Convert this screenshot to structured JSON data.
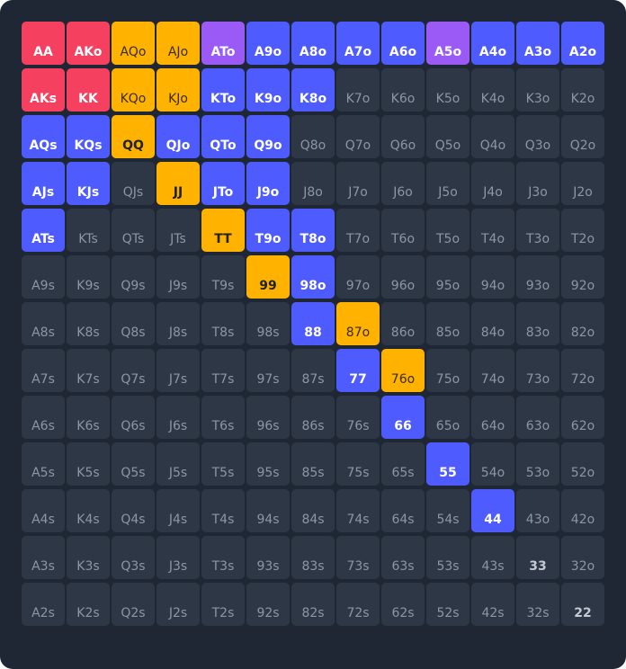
{
  "ranks": [
    "A",
    "K",
    "Q",
    "J",
    "T",
    "9",
    "8",
    "7",
    "6",
    "5",
    "4",
    "3",
    "2"
  ],
  "colors": {
    "premium": "#f5405f",
    "raise": "#4d5bff",
    "call": "#ffb300",
    "mixed": "#9b59f6",
    "fold": "#2d3745",
    "background": "#1e2733"
  },
  "hands": [
    {
      "label": "AA",
      "action": "premium"
    },
    {
      "label": "AKo",
      "action": "premium"
    },
    {
      "label": "AQo",
      "action": "call"
    },
    {
      "label": "AJo",
      "action": "call"
    },
    {
      "label": "ATo",
      "action": "mixed"
    },
    {
      "label": "A9o",
      "action": "raise"
    },
    {
      "label": "A8o",
      "action": "raise"
    },
    {
      "label": "A7o",
      "action": "raise"
    },
    {
      "label": "A6o",
      "action": "raise"
    },
    {
      "label": "A5o",
      "action": "mixed"
    },
    {
      "label": "A4o",
      "action": "raise"
    },
    {
      "label": "A3o",
      "action": "raise"
    },
    {
      "label": "A2o",
      "action": "raise"
    },
    {
      "label": "AKs",
      "action": "premium"
    },
    {
      "label": "KK",
      "action": "premium"
    },
    {
      "label": "KQo",
      "action": "call"
    },
    {
      "label": "KJo",
      "action": "call"
    },
    {
      "label": "KTo",
      "action": "raise"
    },
    {
      "label": "K9o",
      "action": "raise"
    },
    {
      "label": "K8o",
      "action": "raise"
    },
    {
      "label": "K7o",
      "action": "fold"
    },
    {
      "label": "K6o",
      "action": "fold"
    },
    {
      "label": "K5o",
      "action": "fold"
    },
    {
      "label": "K4o",
      "action": "fold"
    },
    {
      "label": "K3o",
      "action": "fold"
    },
    {
      "label": "K2o",
      "action": "fold"
    },
    {
      "label": "AQs",
      "action": "raise"
    },
    {
      "label": "KQs",
      "action": "raise"
    },
    {
      "label": "QQ",
      "action": "call"
    },
    {
      "label": "QJo",
      "action": "raise"
    },
    {
      "label": "QTo",
      "action": "raise"
    },
    {
      "label": "Q9o",
      "action": "raise"
    },
    {
      "label": "Q8o",
      "action": "fold"
    },
    {
      "label": "Q7o",
      "action": "fold"
    },
    {
      "label": "Q6o",
      "action": "fold"
    },
    {
      "label": "Q5o",
      "action": "fold"
    },
    {
      "label": "Q4o",
      "action": "fold"
    },
    {
      "label": "Q3o",
      "action": "fold"
    },
    {
      "label": "Q2o",
      "action": "fold"
    },
    {
      "label": "AJs",
      "action": "raise"
    },
    {
      "label": "KJs",
      "action": "raise"
    },
    {
      "label": "QJs",
      "action": "fold"
    },
    {
      "label": "JJ",
      "action": "call"
    },
    {
      "label": "JTo",
      "action": "raise"
    },
    {
      "label": "J9o",
      "action": "raise"
    },
    {
      "label": "J8o",
      "action": "fold"
    },
    {
      "label": "J7o",
      "action": "fold"
    },
    {
      "label": "J6o",
      "action": "fold"
    },
    {
      "label": "J5o",
      "action": "fold"
    },
    {
      "label": "J4o",
      "action": "fold"
    },
    {
      "label": "J3o",
      "action": "fold"
    },
    {
      "label": "J2o",
      "action": "fold"
    },
    {
      "label": "ATs",
      "action": "raise"
    },
    {
      "label": "KTs",
      "action": "fold"
    },
    {
      "label": "QTs",
      "action": "fold"
    },
    {
      "label": "JTs",
      "action": "fold"
    },
    {
      "label": "TT",
      "action": "call"
    },
    {
      "label": "T9o",
      "action": "raise"
    },
    {
      "label": "T8o",
      "action": "raise"
    },
    {
      "label": "T7o",
      "action": "fold"
    },
    {
      "label": "T6o",
      "action": "fold"
    },
    {
      "label": "T5o",
      "action": "fold"
    },
    {
      "label": "T4o",
      "action": "fold"
    },
    {
      "label": "T3o",
      "action": "fold"
    },
    {
      "label": "T2o",
      "action": "fold"
    },
    {
      "label": "A9s",
      "action": "fold"
    },
    {
      "label": "K9s",
      "action": "fold"
    },
    {
      "label": "Q9s",
      "action": "fold"
    },
    {
      "label": "J9s",
      "action": "fold"
    },
    {
      "label": "T9s",
      "action": "fold"
    },
    {
      "label": "99",
      "action": "call"
    },
    {
      "label": "98o",
      "action": "raise"
    },
    {
      "label": "97o",
      "action": "fold"
    },
    {
      "label": "96o",
      "action": "fold"
    },
    {
      "label": "95o",
      "action": "fold"
    },
    {
      "label": "94o",
      "action": "fold"
    },
    {
      "label": "93o",
      "action": "fold"
    },
    {
      "label": "92o",
      "action": "fold"
    },
    {
      "label": "A8s",
      "action": "fold"
    },
    {
      "label": "K8s",
      "action": "fold"
    },
    {
      "label": "Q8s",
      "action": "fold"
    },
    {
      "label": "J8s",
      "action": "fold"
    },
    {
      "label": "T8s",
      "action": "fold"
    },
    {
      "label": "98s",
      "action": "fold"
    },
    {
      "label": "88",
      "action": "raise"
    },
    {
      "label": "87o",
      "action": "call"
    },
    {
      "label": "86o",
      "action": "fold"
    },
    {
      "label": "85o",
      "action": "fold"
    },
    {
      "label": "84o",
      "action": "fold"
    },
    {
      "label": "83o",
      "action": "fold"
    },
    {
      "label": "82o",
      "action": "fold"
    },
    {
      "label": "A7s",
      "action": "fold"
    },
    {
      "label": "K7s",
      "action": "fold"
    },
    {
      "label": "Q7s",
      "action": "fold"
    },
    {
      "label": "J7s",
      "action": "fold"
    },
    {
      "label": "T7s",
      "action": "fold"
    },
    {
      "label": "97s",
      "action": "fold"
    },
    {
      "label": "87s",
      "action": "fold"
    },
    {
      "label": "77",
      "action": "raise"
    },
    {
      "label": "76o",
      "action": "call"
    },
    {
      "label": "75o",
      "action": "fold"
    },
    {
      "label": "74o",
      "action": "fold"
    },
    {
      "label": "73o",
      "action": "fold"
    },
    {
      "label": "72o",
      "action": "fold"
    },
    {
      "label": "A6s",
      "action": "fold"
    },
    {
      "label": "K6s",
      "action": "fold"
    },
    {
      "label": "Q6s",
      "action": "fold"
    },
    {
      "label": "J6s",
      "action": "fold"
    },
    {
      "label": "T6s",
      "action": "fold"
    },
    {
      "label": "96s",
      "action": "fold"
    },
    {
      "label": "86s",
      "action": "fold"
    },
    {
      "label": "76s",
      "action": "fold"
    },
    {
      "label": "66",
      "action": "raise"
    },
    {
      "label": "65o",
      "action": "fold"
    },
    {
      "label": "64o",
      "action": "fold"
    },
    {
      "label": "63o",
      "action": "fold"
    },
    {
      "label": "62o",
      "action": "fold"
    },
    {
      "label": "A5s",
      "action": "fold"
    },
    {
      "label": "K5s",
      "action": "fold"
    },
    {
      "label": "Q5s",
      "action": "fold"
    },
    {
      "label": "J5s",
      "action": "fold"
    },
    {
      "label": "T5s",
      "action": "fold"
    },
    {
      "label": "95s",
      "action": "fold"
    },
    {
      "label": "85s",
      "action": "fold"
    },
    {
      "label": "75s",
      "action": "fold"
    },
    {
      "label": "65s",
      "action": "fold"
    },
    {
      "label": "55",
      "action": "raise"
    },
    {
      "label": "54o",
      "action": "fold"
    },
    {
      "label": "53o",
      "action": "fold"
    },
    {
      "label": "52o",
      "action": "fold"
    },
    {
      "label": "A4s",
      "action": "fold"
    },
    {
      "label": "K4s",
      "action": "fold"
    },
    {
      "label": "Q4s",
      "action": "fold"
    },
    {
      "label": "J4s",
      "action": "fold"
    },
    {
      "label": "T4s",
      "action": "fold"
    },
    {
      "label": "94s",
      "action": "fold"
    },
    {
      "label": "84s",
      "action": "fold"
    },
    {
      "label": "74s",
      "action": "fold"
    },
    {
      "label": "64s",
      "action": "fold"
    },
    {
      "label": "54s",
      "action": "fold"
    },
    {
      "label": "44",
      "action": "raise"
    },
    {
      "label": "43o",
      "action": "fold"
    },
    {
      "label": "42o",
      "action": "fold"
    },
    {
      "label": "A3s",
      "action": "fold"
    },
    {
      "label": "K3s",
      "action": "fold"
    },
    {
      "label": "Q3s",
      "action": "fold"
    },
    {
      "label": "J3s",
      "action": "fold"
    },
    {
      "label": "T3s",
      "action": "fold"
    },
    {
      "label": "93s",
      "action": "fold"
    },
    {
      "label": "83s",
      "action": "fold"
    },
    {
      "label": "73s",
      "action": "fold"
    },
    {
      "label": "63s",
      "action": "fold"
    },
    {
      "label": "53s",
      "action": "fold"
    },
    {
      "label": "43s",
      "action": "fold"
    },
    {
      "label": "33",
      "action": "fold"
    },
    {
      "label": "32o",
      "action": "fold"
    },
    {
      "label": "A2s",
      "action": "fold"
    },
    {
      "label": "K2s",
      "action": "fold"
    },
    {
      "label": "Q2s",
      "action": "fold"
    },
    {
      "label": "J2s",
      "action": "fold"
    },
    {
      "label": "T2s",
      "action": "fold"
    },
    {
      "label": "92s",
      "action": "fold"
    },
    {
      "label": "82s",
      "action": "fold"
    },
    {
      "label": "72s",
      "action": "fold"
    },
    {
      "label": "62s",
      "action": "fold"
    },
    {
      "label": "52s",
      "action": "fold"
    },
    {
      "label": "42s",
      "action": "fold"
    },
    {
      "label": "32s",
      "action": "fold"
    },
    {
      "label": "22",
      "action": "fold"
    }
  ]
}
